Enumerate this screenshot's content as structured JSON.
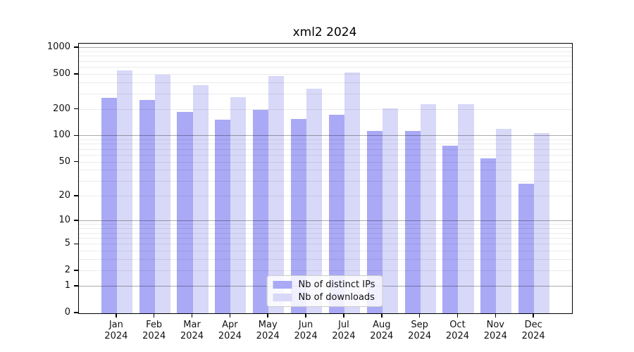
{
  "chart_data": {
    "type": "bar",
    "title": "xml2 2024",
    "categories": [
      "Jan 2024",
      "Feb 2024",
      "Mar 2024",
      "Apr 2024",
      "May 2024",
      "Jun 2024",
      "Jul 2024",
      "Aug 2024",
      "Sep 2024",
      "Oct 2024",
      "Nov 2024",
      "Dec 2024"
    ],
    "series": [
      {
        "name": "Nb of distinct IPs",
        "color": "#a9a9f6",
        "values": [
          272,
          256,
          190,
          153,
          198,
          158,
          175,
          114,
          114,
          78,
          55,
          28
        ]
      },
      {
        "name": "Nb of downloads",
        "color": "#d8d8f8",
        "values": [
          556,
          497,
          377,
          279,
          479,
          344,
          525,
          205,
          229,
          229,
          121,
          108
        ]
      }
    ],
    "xlabel": "",
    "ylabel": "",
    "y_ticks": [
      0,
      1,
      2,
      5,
      10,
      20,
      50,
      100,
      200,
      500,
      1000
    ],
    "ylim": [
      0,
      1120
    ],
    "yscale": "log1p",
    "grid": "horizontal, major at powers of 10, minor at 2-9 per decade",
    "legend_position": "lower center",
    "colors": {
      "major_grid": "#a9a9a9",
      "minor_grid": "#ebebeb",
      "axis_frame": "#000000",
      "background": "#ffffff"
    }
  }
}
